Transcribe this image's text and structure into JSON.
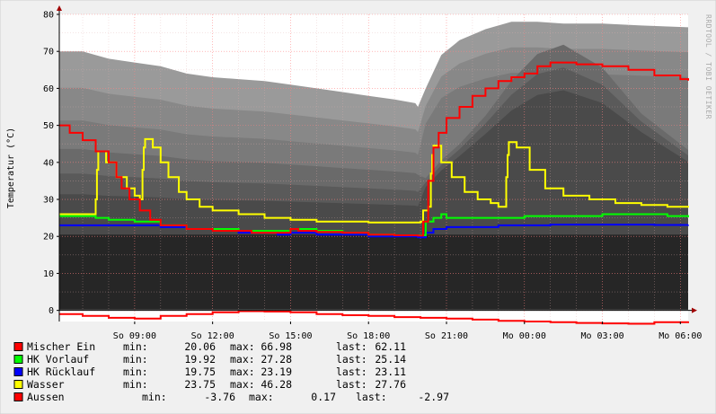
{
  "watermark": "RRDTOOL / TOBI OETIKER",
  "chart_data": {
    "type": "line",
    "ylabel": "Temperatur (°C)",
    "ylim": [
      -3,
      80
    ],
    "yticks": [
      0,
      10,
      20,
      30,
      40,
      50,
      60,
      70,
      80
    ],
    "x_tick_labels": [
      "So 09:00",
      "So 12:00",
      "So 15:00",
      "So 18:00",
      "So 21:00",
      "Mo 00:00",
      "Mo 03:00",
      "Mo 06:00"
    ],
    "x_tick_hours": [
      9,
      12,
      15,
      18,
      21,
      24,
      27,
      30
    ],
    "xlim_hours": [
      6.1,
      30.3
    ],
    "grid": true,
    "background_bands": {
      "colors": [
        "#9a9a9a",
        "#888888",
        "#7a7a7a",
        "#6a6a6a",
        "#5a5a5a",
        "#4a4a4a",
        "#262626"
      ],
      "upper_outline": [
        [
          6.1,
          70
        ],
        [
          7.0,
          70
        ],
        [
          8.0,
          68
        ],
        [
          9.0,
          67
        ],
        [
          10.0,
          66
        ],
        [
          11.0,
          64
        ],
        [
          12.0,
          63
        ],
        [
          13.0,
          62.5
        ],
        [
          14.0,
          62
        ],
        [
          15.0,
          61
        ],
        [
          16.0,
          60
        ],
        [
          17.0,
          59
        ],
        [
          18.0,
          58
        ],
        [
          19.0,
          57
        ],
        [
          19.8,
          56
        ],
        [
          19.9,
          55
        ],
        [
          20.2,
          60
        ],
        [
          20.8,
          69
        ],
        [
          21.5,
          73
        ],
        [
          22.5,
          76
        ],
        [
          23.5,
          78
        ],
        [
          24.5,
          78
        ],
        [
          25.5,
          77.5
        ],
        [
          27.0,
          77.5
        ],
        [
          28.5,
          77
        ],
        [
          30.3,
          76.5
        ]
      ],
      "floor": 20.5
    },
    "series": [
      {
        "name": "Mischer Ein",
        "color": "#ff0000",
        "points": [
          [
            6.1,
            50
          ],
          [
            6.5,
            48
          ],
          [
            7.0,
            46
          ],
          [
            7.5,
            43
          ],
          [
            8.0,
            40
          ],
          [
            8.3,
            36
          ],
          [
            8.5,
            33
          ],
          [
            8.8,
            30
          ],
          [
            9.2,
            27
          ],
          [
            9.6,
            24.5
          ],
          [
            10.0,
            23
          ],
          [
            11.0,
            22
          ],
          [
            12.0,
            21.5
          ],
          [
            13.5,
            21
          ],
          [
            14.5,
            21
          ],
          [
            15.0,
            22
          ],
          [
            15.3,
            21.5
          ],
          [
            16.0,
            21.2
          ],
          [
            17.0,
            21
          ],
          [
            18.0,
            20.5
          ],
          [
            19.0,
            20.3
          ],
          [
            19.9,
            20.2
          ],
          [
            20.1,
            24
          ],
          [
            20.3,
            35
          ],
          [
            20.5,
            44
          ],
          [
            20.7,
            48
          ],
          [
            21.0,
            52
          ],
          [
            21.5,
            55
          ],
          [
            22.0,
            58
          ],
          [
            22.5,
            60
          ],
          [
            23.0,
            62
          ],
          [
            23.5,
            63
          ],
          [
            24.0,
            64
          ],
          [
            24.5,
            66
          ],
          [
            25.0,
            67
          ],
          [
            26.0,
            66.5
          ],
          [
            27.0,
            66
          ],
          [
            28.0,
            65
          ],
          [
            29.0,
            63.5
          ],
          [
            30.0,
            62.5
          ],
          [
            30.3,
            62.11
          ]
        ]
      },
      {
        "name": "HK Vorlauf",
        "color": "#00ff00",
        "points": [
          [
            6.1,
            25.5
          ],
          [
            7.5,
            25
          ],
          [
            8.0,
            24.5
          ],
          [
            9.0,
            24
          ],
          [
            10.0,
            23
          ],
          [
            11.0,
            22
          ],
          [
            12.0,
            22
          ],
          [
            13.0,
            21.5
          ],
          [
            14.5,
            21.5
          ],
          [
            15.0,
            22
          ],
          [
            16.0,
            21.5
          ],
          [
            17.0,
            21
          ],
          [
            18.0,
            20.5
          ],
          [
            19.0,
            20.3
          ],
          [
            19.9,
            20.3
          ],
          [
            20.2,
            24
          ],
          [
            20.5,
            25
          ],
          [
            20.8,
            26
          ],
          [
            21.0,
            25
          ],
          [
            22.0,
            25
          ],
          [
            23.0,
            25
          ],
          [
            24.0,
            25.5
          ],
          [
            25.0,
            25.5
          ],
          [
            26.0,
            25.5
          ],
          [
            27.0,
            26
          ],
          [
            28.0,
            26
          ],
          [
            29.0,
            26
          ],
          [
            29.5,
            25.5
          ],
          [
            30.3,
            25.14
          ]
        ]
      },
      {
        "name": "HK Rücklauf",
        "color": "#0000ff",
        "points": [
          [
            6.1,
            23
          ],
          [
            8.0,
            23
          ],
          [
            9.0,
            23
          ],
          [
            10.0,
            22.5
          ],
          [
            11.0,
            22
          ],
          [
            12.0,
            21.5
          ],
          [
            13.0,
            21
          ],
          [
            14.0,
            21
          ],
          [
            14.5,
            20.5
          ],
          [
            15.0,
            21
          ],
          [
            16.0,
            20.5
          ],
          [
            17.0,
            20.5
          ],
          [
            18.0,
            20
          ],
          [
            19.0,
            20
          ],
          [
            19.9,
            19.75
          ],
          [
            20.2,
            21
          ],
          [
            20.5,
            22
          ],
          [
            21.0,
            22.5
          ],
          [
            22.0,
            22.5
          ],
          [
            23.0,
            23
          ],
          [
            24.0,
            23
          ],
          [
            25.0,
            23.19
          ],
          [
            26.0,
            23.19
          ],
          [
            27.0,
            23.19
          ],
          [
            28.0,
            23.19
          ],
          [
            29.0,
            23.1
          ],
          [
            30.3,
            23.11
          ]
        ]
      },
      {
        "name": "Wasser",
        "color": "#ffff00",
        "points": [
          [
            6.1,
            26
          ],
          [
            7.0,
            26
          ],
          [
            7.4,
            26
          ],
          [
            7.5,
            30
          ],
          [
            7.55,
            38
          ],
          [
            7.6,
            43
          ],
          [
            7.9,
            40
          ],
          [
            8.3,
            36
          ],
          [
            8.7,
            33
          ],
          [
            9.0,
            31
          ],
          [
            9.2,
            30
          ],
          [
            9.3,
            38
          ],
          [
            9.35,
            44
          ],
          [
            9.4,
            46.28
          ],
          [
            9.7,
            44
          ],
          [
            10.0,
            40
          ],
          [
            10.3,
            36
          ],
          [
            10.7,
            32
          ],
          [
            11.0,
            30
          ],
          [
            11.5,
            28
          ],
          [
            12.0,
            27
          ],
          [
            13.0,
            26
          ],
          [
            14.0,
            25
          ],
          [
            15.0,
            24.5
          ],
          [
            16.0,
            24
          ],
          [
            17.0,
            24
          ],
          [
            18.0,
            23.75
          ],
          [
            19.5,
            23.75
          ],
          [
            20.0,
            24
          ],
          [
            20.1,
            27
          ],
          [
            20.3,
            28
          ],
          [
            20.4,
            37
          ],
          [
            20.45,
            42
          ],
          [
            20.5,
            44.5
          ],
          [
            20.8,
            40
          ],
          [
            21.2,
            36
          ],
          [
            21.7,
            32
          ],
          [
            22.2,
            30
          ],
          [
            22.7,
            29
          ],
          [
            23.0,
            28
          ],
          [
            23.2,
            28
          ],
          [
            23.3,
            36
          ],
          [
            23.35,
            42
          ],
          [
            23.4,
            45.5
          ],
          [
            23.7,
            44
          ],
          [
            24.2,
            38
          ],
          [
            24.8,
            33
          ],
          [
            25.5,
            31
          ],
          [
            26.5,
            30
          ],
          [
            27.5,
            29
          ],
          [
            28.5,
            28.5
          ],
          [
            29.5,
            28
          ],
          [
            30.3,
            27.76
          ]
        ]
      },
      {
        "name": "Aussen",
        "color": "#ff0000",
        "points": [
          [
            6.1,
            -1
          ],
          [
            7.0,
            -1.5
          ],
          [
            8.0,
            -2
          ],
          [
            9.0,
            -2.2
          ],
          [
            10.0,
            -1.5
          ],
          [
            11.0,
            -1
          ],
          [
            12.0,
            -0.5
          ],
          [
            13.0,
            -0.2
          ],
          [
            14.0,
            -0.3
          ],
          [
            15.0,
            -0.5
          ],
          [
            16.0,
            -1
          ],
          [
            17.0,
            -1.3
          ],
          [
            18.0,
            -1.5
          ],
          [
            19.0,
            -1.8
          ],
          [
            20.0,
            -2
          ],
          [
            21.0,
            -2.2
          ],
          [
            22.0,
            -2.5
          ],
          [
            23.0,
            -2.8
          ],
          [
            24.0,
            -3
          ],
          [
            25.0,
            -3.2
          ],
          [
            26.0,
            -3.4
          ],
          [
            27.0,
            -3.5
          ],
          [
            28.0,
            -3.6
          ],
          [
            29.0,
            -3.2
          ],
          [
            30.3,
            -2.97
          ]
        ]
      }
    ],
    "legend": [
      {
        "name": "Mischer Ein",
        "color": "#ff0000",
        "min_label": "min:",
        "min": "20.06",
        "max_label": "max:",
        "max": "66.98",
        "last_label": "last:",
        "last": "62.11"
      },
      {
        "name": "HK Vorlauf",
        "color": "#00ff00",
        "min_label": "min:",
        "min": "19.92",
        "max_label": "max:",
        "max": "27.28",
        "last_label": "last:",
        "last": "25.14"
      },
      {
        "name": "HK Rücklauf",
        "color": "#0000ff",
        "min_label": "min:",
        "min": "19.75",
        "max_label": "max:",
        "max": "23.19",
        "last_label": "last:",
        "last": "23.11"
      },
      {
        "name": "Wasser",
        "color": "#ffff00",
        "min_label": "min:",
        "min": "23.75",
        "max_label": "max:",
        "max": "46.28",
        "last_label": "last:",
        "last": "27.76"
      },
      {
        "name": "Aussen",
        "color": "#ff0000",
        "min_label": "min:",
        "min": "-3.76",
        "max_label": "max:",
        "max": "0.17",
        "last_label": "last:",
        "last": "-2.97"
      }
    ]
  }
}
